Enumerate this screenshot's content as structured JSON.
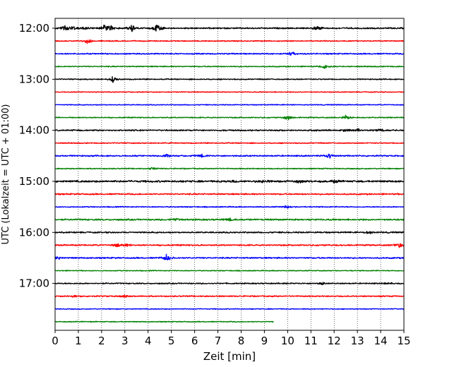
{
  "chart_data": {
    "type": "line",
    "subtype": "seismogram-helicorder",
    "xlabel": "Zeit  [min]",
    "ylabel": "UTC (Lokalzeit = UTC + 01:00)",
    "xlim": [
      0,
      15
    ],
    "xticks": [
      "0",
      "1",
      "2",
      "3",
      "4",
      "5",
      "6",
      "7",
      "8",
      "9",
      "10",
      "11",
      "12",
      "13",
      "14",
      "15"
    ],
    "grid": "vertical dotted at each minute",
    "row_labels": [
      "12:00",
      "13:00",
      "14:00",
      "15:00",
      "16:00",
      "17:00"
    ],
    "row_colors_cycle": [
      "#000000",
      "#ff0000",
      "#0000ff",
      "#008000"
    ],
    "traces": [
      {
        "start": "12:00",
        "color": "#000000",
        "end_min": 15,
        "noise": 0.8,
        "events": [
          [
            0.4,
            7
          ],
          [
            0.8,
            4
          ],
          [
            1.3,
            3
          ],
          [
            2.1,
            5
          ],
          [
            2.4,
            4
          ],
          [
            3.3,
            7
          ],
          [
            4.4,
            8
          ],
          [
            11.3,
            4
          ]
        ]
      },
      {
        "start": "12:15",
        "color": "#ff0000",
        "end_min": 15,
        "noise": 0.6,
        "events": [
          [
            1.4,
            5
          ]
        ]
      },
      {
        "start": "12:30",
        "color": "#0000ff",
        "end_min": 15,
        "noise": 0.7,
        "events": [
          [
            10.2,
            4
          ]
        ]
      },
      {
        "start": "12:45",
        "color": "#008000",
        "end_min": 15,
        "noise": 0.6,
        "events": [
          [
            11.6,
            4
          ]
        ]
      },
      {
        "start": "13:00",
        "color": "#000000",
        "end_min": 15,
        "noise": 0.6,
        "events": [
          [
            2.5,
            5
          ]
        ]
      },
      {
        "start": "13:15",
        "color": "#ff0000",
        "end_min": 15,
        "noise": 0.5,
        "events": []
      },
      {
        "start": "13:30",
        "color": "#0000ff",
        "end_min": 15,
        "noise": 0.5,
        "events": []
      },
      {
        "start": "13:45",
        "color": "#008000",
        "end_min": 15,
        "noise": 0.6,
        "events": [
          [
            10.0,
            4
          ],
          [
            12.5,
            4
          ]
        ]
      },
      {
        "start": "14:00",
        "color": "#000000",
        "end_min": 15,
        "noise": 0.8,
        "events": [
          [
            12.5,
            2
          ],
          [
            13.0,
            2
          ],
          [
            14.0,
            2
          ]
        ]
      },
      {
        "start": "14:15",
        "color": "#ff0000",
        "end_min": 15,
        "noise": 0.6,
        "events": []
      },
      {
        "start": "14:30",
        "color": "#0000ff",
        "end_min": 15,
        "noise": 0.8,
        "events": [
          [
            4.8,
            2
          ],
          [
            6.3,
            2
          ],
          [
            11.8,
            4
          ]
        ]
      },
      {
        "start": "14:45",
        "color": "#008000",
        "end_min": 15,
        "noise": 0.6,
        "events": [
          [
            4.2,
            2
          ]
        ]
      },
      {
        "start": "15:00",
        "color": "#000000",
        "end_min": 15,
        "noise": 1.1,
        "events": [
          [
            7.7,
            2
          ],
          [
            9.0,
            2
          ],
          [
            10.5,
            2
          ],
          [
            12.0,
            2
          ]
        ]
      },
      {
        "start": "15:15",
        "color": "#ff0000",
        "end_min": 15,
        "noise": 0.8,
        "events": []
      },
      {
        "start": "15:30",
        "color": "#0000ff",
        "end_min": 15,
        "noise": 0.6,
        "events": [
          [
            10.0,
            3
          ]
        ]
      },
      {
        "start": "15:45",
        "color": "#008000",
        "end_min": 15,
        "noise": 0.9,
        "events": [
          [
            5.2,
            2
          ],
          [
            7.5,
            2
          ]
        ]
      },
      {
        "start": "16:00",
        "color": "#000000",
        "end_min": 15,
        "noise": 0.8,
        "events": [
          [
            13.5,
            3
          ]
        ]
      },
      {
        "start": "16:15",
        "color": "#ff0000",
        "end_min": 15,
        "noise": 0.8,
        "events": [
          [
            2.7,
            3
          ],
          [
            3.1,
            2
          ],
          [
            14.8,
            4
          ]
        ]
      },
      {
        "start": "16:30",
        "color": "#0000ff",
        "end_min": 15,
        "noise": 0.8,
        "events": [
          [
            0.1,
            3
          ],
          [
            4.8,
            6
          ]
        ]
      },
      {
        "start": "16:45",
        "color": "#008000",
        "end_min": 15,
        "noise": 0.5,
        "events": []
      },
      {
        "start": "17:00",
        "color": "#000000",
        "end_min": 15,
        "noise": 0.7,
        "events": [
          [
            11.5,
            2
          ],
          [
            14.3,
            2
          ]
        ]
      },
      {
        "start": "17:15",
        "color": "#ff0000",
        "end_min": 15,
        "noise": 0.7,
        "events": [
          [
            0.8,
            2
          ],
          [
            3.0,
            2
          ]
        ]
      },
      {
        "start": "17:30",
        "color": "#0000ff",
        "end_min": 15,
        "noise": 0.5,
        "events": []
      },
      {
        "start": "17:45",
        "color": "#008000",
        "end_min": 9.4,
        "noise": 0.5,
        "events": []
      }
    ]
  }
}
